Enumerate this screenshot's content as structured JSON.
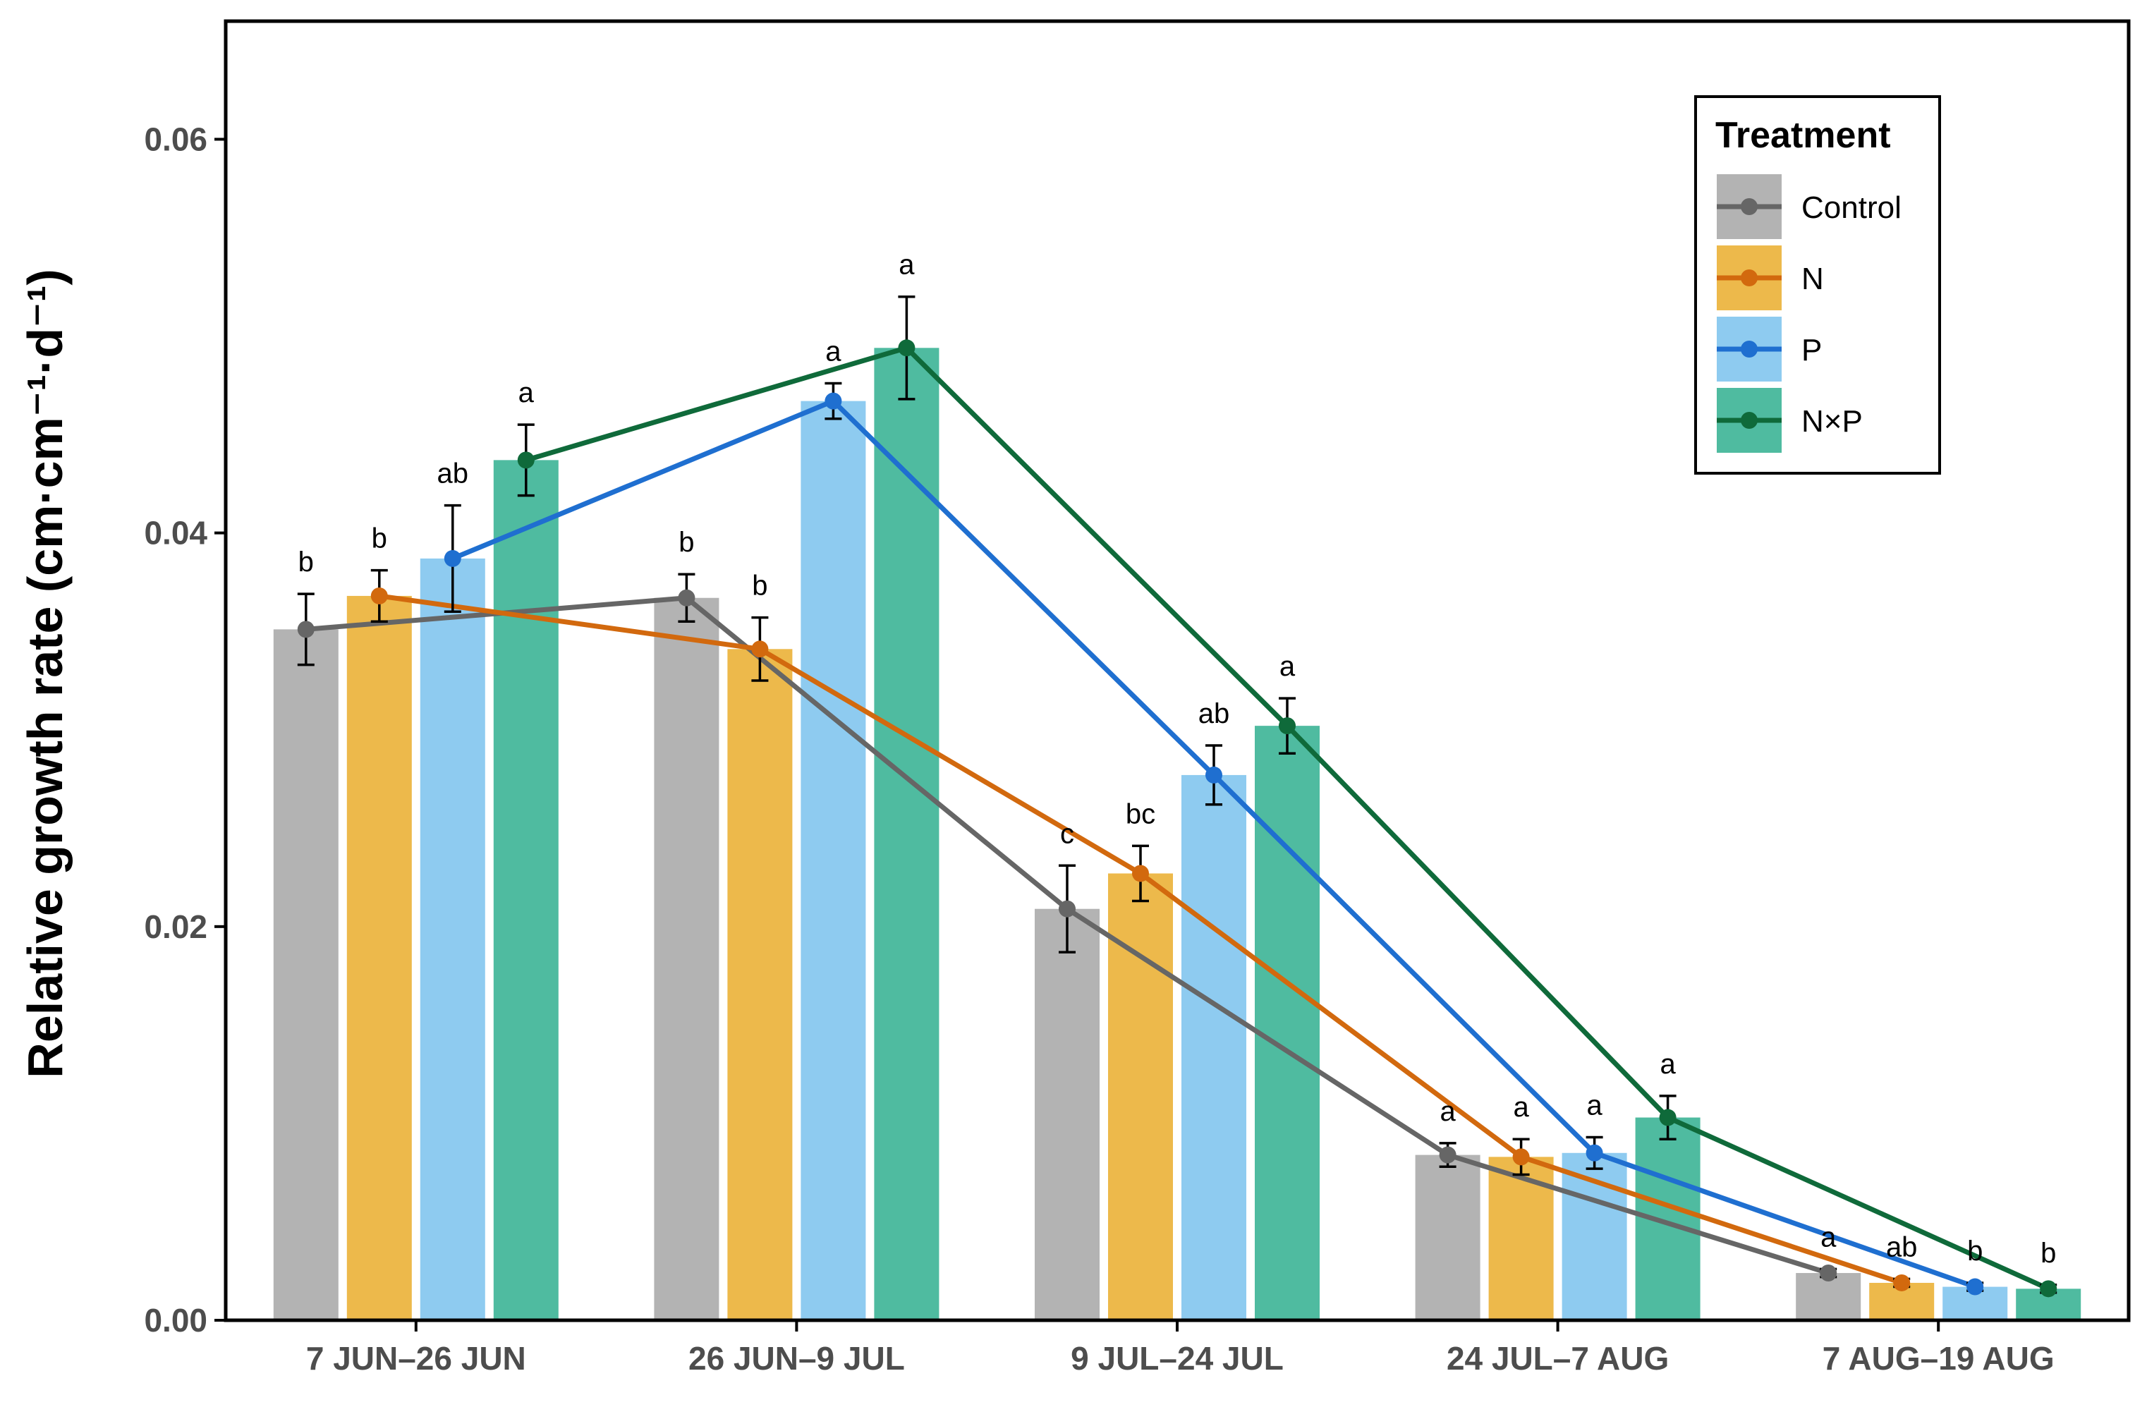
{
  "chart_data": {
    "type": "bar",
    "title": "",
    "xlabel": "",
    "ylabel": "Relative growth rate (cm·cm⁻¹·d⁻¹)",
    "ylim": [
      0,
      0.066
    ],
    "yticks": [
      {
        "value": 0.0,
        "label": "0.00"
      },
      {
        "value": 0.02,
        "label": "0.02"
      },
      {
        "value": 0.04,
        "label": "0.04"
      },
      {
        "value": 0.06,
        "label": "0.06"
      }
    ],
    "categories": [
      "7 JUN–26 JUN",
      "26 JUN–9 JUL",
      "9 JUL–24 JUL",
      "24 JUL–7 AUG",
      "7 AUG–19 AUG"
    ],
    "grid": false,
    "legend": {
      "title": "Treatment",
      "position": "top-right"
    },
    "series": [
      {
        "name": "Control",
        "bar_color": "#b3b3b3",
        "line_color": "#666666",
        "values": [
          0.0351,
          0.0367,
          0.0209,
          0.0084,
          0.0024
        ],
        "errors": [
          0.0018,
          0.0012,
          0.0022,
          0.0006,
          0.0002
        ],
        "letters": [
          "b",
          "b",
          "c",
          "a",
          "a"
        ]
      },
      {
        "name": "N",
        "bar_color": "#edb94b",
        "line_color": "#d2690e",
        "values": [
          0.0368,
          0.0341,
          0.0227,
          0.0083,
          0.0019
        ],
        "errors": [
          0.0013,
          0.0016,
          0.0014,
          0.0009,
          0.0002
        ],
        "letters": [
          "b",
          "b",
          "bc",
          "a",
          "ab"
        ]
      },
      {
        "name": "P",
        "bar_color": "#8ecbf0",
        "line_color": "#1f6fd0",
        "values": [
          0.0387,
          0.0467,
          0.0277,
          0.0085,
          0.0017
        ],
        "errors": [
          0.0027,
          0.0009,
          0.0015,
          0.0008,
          0.0002
        ],
        "letters": [
          "ab",
          "a",
          "ab",
          "a",
          "b"
        ]
      },
      {
        "name": "N×P",
        "bar_color": "#4fbba0",
        "line_color": "#0f6a3a",
        "values": [
          0.0437,
          0.0494,
          0.0302,
          0.0103,
          0.0016
        ],
        "errors": [
          0.0018,
          0.0026,
          0.0014,
          0.0011,
          0.0002
        ],
        "letters": [
          "a",
          "a",
          "a",
          "a",
          "b"
        ]
      }
    ]
  }
}
